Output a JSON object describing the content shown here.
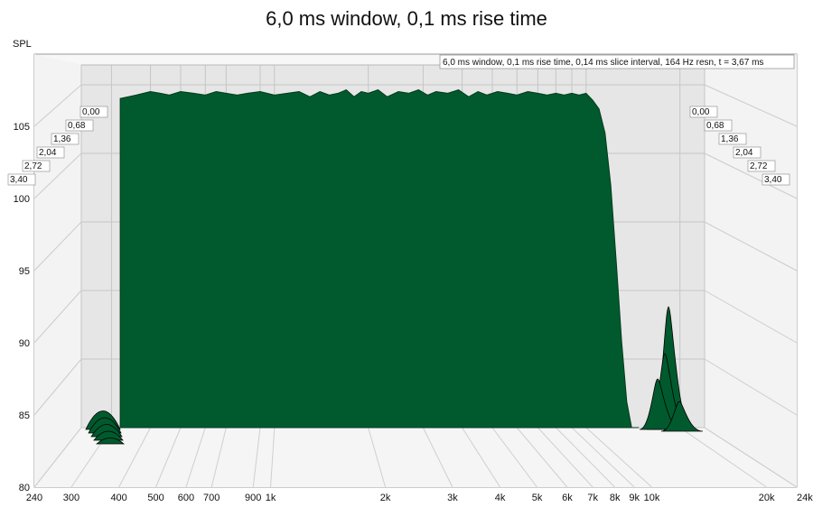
{
  "chart_data": {
    "type": "area",
    "title": "6,0 ms window, 0,1 ms rise time",
    "info_box": "6,0 ms window, 0,1 ms rise time, 0,14 ms slice interval, 164 Hz resn, t = 3,67 ms",
    "ylabel": "SPL",
    "xlim": [
      240,
      24000
    ],
    "ylim": [
      80,
      108
    ],
    "x_scale": "log",
    "grid": true,
    "y_ticks": [
      80,
      85,
      90,
      95,
      100,
      105
    ],
    "y_tick_labels": [
      "80",
      "85",
      "90",
      "95",
      "100",
      "105"
    ],
    "x_ticks": [
      240,
      300,
      400,
      500,
      600,
      700,
      900,
      1000,
      2000,
      3000,
      4000,
      5000,
      6000,
      7000,
      8000,
      9000,
      10000,
      20000,
      24000
    ],
    "x_tick_labels": [
      "240",
      "300",
      "400",
      "500",
      "600",
      "700",
      "900",
      "1k",
      "2k",
      "3k",
      "4k",
      "5k",
      "6k",
      "7k",
      "8k",
      "9k",
      "10k",
      "20k",
      "24kHz"
    ],
    "slice_labels": [
      "0,00",
      "0,68",
      "1,36",
      "2,04",
      "2,72",
      "3,40"
    ],
    "fill_color": "#005a2e",
    "series": [
      {
        "x": [
          320,
          340,
          360,
          380,
          400,
          430,
          460,
          500,
          550,
          600,
          650,
          700,
          760,
          820,
          900,
          1000,
          1100,
          1200,
          1300,
          1400,
          1500,
          1600,
          1700,
          1800,
          1900,
          2000,
          2150,
          2300,
          2500,
          2700,
          2900,
          3100,
          3300,
          3600,
          3900,
          4200,
          4500,
          4800,
          5200,
          5600,
          6000,
          6500,
          7000,
          7500,
          8000,
          8500,
          9000,
          9500,
          10000,
          10500,
          11000,
          11500,
          12000,
          12500,
          13000,
          13500,
          14000
        ],
        "y": [
          102.5,
          102.6,
          102.7,
          102.8,
          102.9,
          102.8,
          102.7,
          102.9,
          102.8,
          102.7,
          102.9,
          102.8,
          102.7,
          102.8,
          102.9,
          102.7,
          102.8,
          102.9,
          102.6,
          102.9,
          102.7,
          102.8,
          103.0,
          102.6,
          102.9,
          102.8,
          103.0,
          102.6,
          102.9,
          102.8,
          103.0,
          102.7,
          102.9,
          102.8,
          103.0,
          102.6,
          102.9,
          102.7,
          102.9,
          102.8,
          102.7,
          102.9,
          102.8,
          102.7,
          102.8,
          102.7,
          102.8,
          102.7,
          102.8,
          102.4,
          101.9,
          100.5,
          97.5,
          93.0,
          88.5,
          85.0,
          83.5
        ]
      }
    ]
  }
}
